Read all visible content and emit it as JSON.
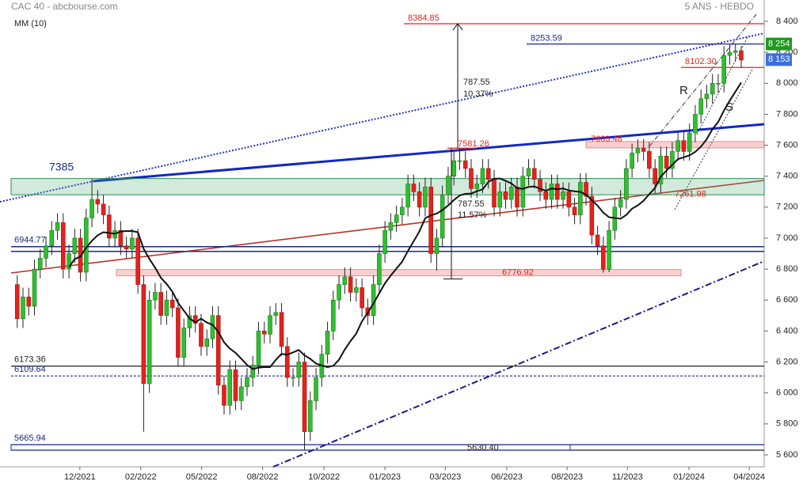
{
  "chart_data": {
    "type": "candlestick",
    "title": "CAC 40 - abcbourse.com",
    "subtitle": "5 ANS - HEBDO",
    "x": [
      0,
      1,
      2,
      3,
      4,
      5,
      6,
      7,
      8,
      9,
      10,
      11,
      12,
      13,
      14,
      15,
      16,
      17,
      18,
      19,
      20,
      21,
      22,
      23,
      24,
      25,
      26,
      27,
      28,
      29,
      30,
      31,
      32,
      33,
      34,
      35,
      36,
      37,
      38,
      39,
      40,
      41,
      42,
      43,
      44,
      45,
      46,
      47,
      48,
      49,
      50,
      51,
      52,
      53,
      54,
      55,
      56,
      57,
      58,
      59,
      60,
      61,
      62,
      63,
      64,
      65,
      66,
      67,
      68,
      69,
      70,
      71,
      72,
      73,
      74,
      75,
      76,
      77,
      78,
      79,
      80,
      81,
      82,
      83,
      84,
      85,
      86,
      87,
      88,
      89,
      90,
      91,
      92,
      93,
      94,
      95,
      96,
      97,
      98,
      99,
      100,
      101,
      102,
      103,
      104,
      105,
      106,
      107,
      108,
      109,
      110,
      111,
      112,
      113,
      114,
      115,
      116,
      117,
      118,
      119,
      120,
      121,
      122,
      123,
      124,
      125,
      126
    ],
    "open": [
      6700,
      6480,
      6620,
      6560,
      6800,
      6870,
      6950,
      7050,
      7100,
      6800,
      6900,
      7000,
      6780,
      7130,
      7250,
      7220,
      7150,
      7000,
      7050,
      6950,
      6930,
      7000,
      6700,
      6060,
      6600,
      6650,
      6500,
      6600,
      6550,
      6230,
      6420,
      6500,
      6450,
      6300,
      6350,
      6500,
      6050,
      5920,
      6150,
      5950,
      6040,
      6100,
      6180,
      6400,
      6380,
      6500,
      6520,
      6300,
      6100,
      6100,
      6200,
      5750,
      5950,
      6100,
      6250,
      6400,
      6600,
      6700,
      6750,
      6650,
      6680,
      6550,
      6500,
      6700,
      6900,
      7050,
      7100,
      7150,
      7200,
      7350,
      7300,
      7200,
      7330,
      6900,
      7000,
      7280,
      7400,
      7500,
      7500,
      7450,
      7320,
      7350,
      7450,
      7380,
      7200,
      7300,
      7250,
      7330,
      7200,
      7400,
      7450,
      7380,
      7300,
      7250,
      7350,
      7250,
      7300,
      7200,
      7150,
      7360,
      7270,
      7020,
      6950,
      6800,
      7050,
      7200,
      7250,
      7450,
      7550,
      7580,
      7560,
      7450,
      7350,
      7530,
      7450,
      7560,
      7630,
      7560,
      7680,
      7800,
      7900,
      7930,
      8000,
      8000,
      8180,
      8200,
      8210
    ],
    "high": [
      6760,
      6680,
      6680,
      6860,
      6930,
      7010,
      7110,
      7160,
      7160,
      6960,
      7060,
      7060,
      7190,
      7385,
      7310,
      7280,
      7210,
      7110,
      7110,
      7010,
      7060,
      7060,
      6760,
      6660,
      6710,
      6710,
      6660,
      6660,
      6610,
      6480,
      6560,
      6560,
      6510,
      6410,
      6560,
      6560,
      6110,
      6210,
      6210,
      6100,
      6160,
      6240,
      6460,
      6460,
      6560,
      6580,
      6580,
      6360,
      6160,
      6260,
      6260,
      6010,
      6160,
      6310,
      6460,
      6660,
      6760,
      6810,
      6810,
      6740,
      6740,
      6610,
      6760,
      6960,
      7110,
      7160,
      7210,
      7260,
      7410,
      7410,
      7360,
      7390,
      7390,
      7060,
      7340,
      7460,
      7560,
      7581,
      7560,
      7510,
      7410,
      7510,
      7510,
      7440,
      7360,
      7360,
      7390,
      7390,
      7460,
      7510,
      7510,
      7440,
      7360,
      7410,
      7410,
      7360,
      7360,
      7260,
      7420,
      7420,
      7330,
      7080,
      7010,
      7110,
      7260,
      7310,
      7510,
      7610,
      7640,
      7640,
      7620,
      7510,
      7590,
      7590,
      7620,
      7690,
      7690,
      7740,
      7860,
      7960,
      7990,
      8060,
      8060,
      8240,
      8250,
      8254,
      8240
    ],
    "low": [
      6420,
      6420,
      6500,
      6500,
      6740,
      6810,
      6890,
      6990,
      6740,
      6740,
      6840,
      6720,
      6720,
      7070,
      7160,
      7090,
      6940,
      6940,
      6890,
      6870,
      6870,
      6640,
      5750,
      6000,
      6540,
      6440,
      6440,
      6490,
      6170,
      6170,
      6360,
      6390,
      6240,
      6240,
      6290,
      5990,
      5860,
      5860,
      5890,
      5890,
      5980,
      6040,
      6120,
      6320,
      6320,
      6440,
      6240,
      6040,
      6040,
      6040,
      5630,
      5690,
      5890,
      6040,
      6190,
      6340,
      6540,
      6640,
      6590,
      6590,
      6490,
      6440,
      6440,
      6640,
      6840,
      6990,
      7040,
      7090,
      7140,
      7240,
      7140,
      7140,
      6840,
      6790,
      6940,
      7220,
      7340,
      7440,
      7390,
      7260,
      7260,
      7290,
      7320,
      7140,
      7140,
      7190,
      7190,
      7140,
      7140,
      7340,
      7320,
      7240,
      7190,
      7190,
      7190,
      7190,
      7140,
      7090,
      7090,
      7210,
      6960,
      6890,
      6777,
      6780,
      6990,
      7140,
      7190,
      7390,
      7490,
      7500,
      7390,
      7290,
      7290,
      7390,
      7390,
      7500,
      7500,
      7500,
      7620,
      7740,
      7840,
      7870,
      7940,
      7940,
      8120,
      8140,
      8102
    ],
    "close": [
      6480,
      6620,
      6560,
      6800,
      6870,
      6950,
      7050,
      7100,
      6800,
      6900,
      7000,
      6780,
      7130,
      7250,
      7220,
      7150,
      7000,
      7050,
      6950,
      6930,
      7000,
      6700,
      6060,
      6600,
      6650,
      6500,
      6600,
      6550,
      6230,
      6420,
      6500,
      6450,
      6300,
      6350,
      6500,
      6050,
      5920,
      6150,
      5950,
      6040,
      6100,
      6180,
      6400,
      6380,
      6500,
      6520,
      6300,
      6100,
      6100,
      6200,
      5750,
      5950,
      6100,
      6250,
      6400,
      6600,
      6700,
      6750,
      6650,
      6680,
      6550,
      6500,
      6700,
      6900,
      7050,
      7100,
      7150,
      7200,
      7350,
      7300,
      7200,
      7330,
      6900,
      7000,
      7280,
      7400,
      7500,
      7500,
      7450,
      7320,
      7350,
      7450,
      7380,
      7200,
      7300,
      7250,
      7330,
      7200,
      7400,
      7450,
      7380,
      7300,
      7250,
      7350,
      7250,
      7300,
      7200,
      7150,
      7360,
      7270,
      7020,
      6950,
      6800,
      7050,
      7200,
      7250,
      7450,
      7550,
      7580,
      7560,
      7450,
      7350,
      7530,
      7450,
      7560,
      7630,
      7560,
      7680,
      7800,
      7900,
      7930,
      8000,
      8000,
      8180,
      8200,
      8210,
      8150
    ],
    "up_color": "#2fbf2f",
    "down_color": "#e3221c",
    "ma": {
      "name": "MM (10)",
      "color": "#111111",
      "values": [
        null,
        null,
        null,
        null,
        null,
        null,
        null,
        null,
        null,
        6813,
        6865,
        6881,
        6938,
        6983,
        7018,
        7038,
        7033,
        7028,
        7043,
        7046,
        7046,
        7038,
        6931,
        6866,
        6809,
        6744,
        6704,
        6654,
        6582,
        6531,
        6481,
        6456,
        6480,
        6455,
        6440,
        6395,
        6327,
        6287,
        6259,
        6221,
        6181,
        6154,
        6164,
        6167,
        6167,
        6214,
        6252,
        6247,
        6262,
        6278,
        6243,
        6220,
        6190,
        6177,
        6167,
        6175,
        6215,
        6280,
        6335,
        6383,
        6463,
        6518,
        6578,
        6643,
        6708,
        6758,
        6803,
        6848,
        6918,
        6980,
        7045,
        7128,
        7148,
        7158,
        7181,
        7211,
        7246,
        7276,
        7286,
        7288,
        7303,
        7315,
        7363,
        7383,
        7385,
        7370,
        7353,
        7323,
        7318,
        7331,
        7334,
        7319,
        7306,
        7321,
        7316,
        7321,
        7308,
        7303,
        7299,
        7281,
        7245,
        7210,
        7165,
        7135,
        7130,
        7125,
        7150,
        7190,
        7212,
        7241,
        7284,
        7324,
        7397,
        7437,
        7473,
        7511,
        7522,
        7535,
        7557,
        7591,
        7639,
        7704,
        7751,
        7824,
        7888,
        7946,
        8005
      ]
    },
    "xlim": [
      -3,
      130
    ],
    "xticks": [
      {
        "value": 10.9,
        "label": "12/2021"
      },
      {
        "value": 21.5,
        "label": "02/2022"
      },
      {
        "value": 32.1,
        "label": "05/2022"
      },
      {
        "value": 42.7,
        "label": "08/2022"
      },
      {
        "value": 53.4,
        "label": "10/2022"
      },
      {
        "value": 64,
        "label": "01/2023"
      },
      {
        "value": 74.5,
        "label": "03/2023"
      },
      {
        "value": 85.2,
        "label": "06/2023"
      },
      {
        "value": 95.7,
        "label": "08/2023"
      },
      {
        "value": 106.2,
        "label": "11/2023"
      },
      {
        "value": 116.9,
        "label": "01/2024"
      },
      {
        "value": 127.4,
        "label": "04/2024"
      }
    ],
    "ylim": [
      5523,
      8538
    ],
    "yticks": [
      {
        "value": 5600,
        "label": "5 600"
      },
      {
        "value": 5800,
        "label": "5 800"
      },
      {
        "value": 6000,
        "label": "6 000"
      },
      {
        "value": 6200,
        "label": "6 200"
      },
      {
        "value": 6400,
        "label": "6 400"
      },
      {
        "value": 6600,
        "label": "6 600"
      },
      {
        "value": 6800,
        "label": "6 800"
      },
      {
        "value": 7000,
        "label": "7 000"
      },
      {
        "value": 7200,
        "label": "7 200"
      },
      {
        "value": 7400,
        "label": "7 400"
      },
      {
        "value": 7600,
        "label": "7 600"
      },
      {
        "value": 7800,
        "label": "7 800"
      },
      {
        "value": 8000,
        "label": "8 000"
      },
      {
        "value": 8200,
        "label": "8 200"
      },
      {
        "value": 8400,
        "label": "8 400"
      }
    ],
    "levels": [
      {
        "value": 8384.85,
        "color": "#e3221c"
      },
      {
        "value": 8253.59,
        "color": "#1a2a8a"
      },
      {
        "value": 8102.3,
        "label": "8102.30",
        "color": "#e3221c"
      },
      {
        "value": 7603.48,
        "color": "#e3221c"
      },
      {
        "value": 7581.26,
        "color": "#e3221c"
      },
      {
        "value": 7385,
        "low": 7280,
        "color": "#1a2a8a"
      },
      {
        "value": 7261.98,
        "color": "#e3221c"
      },
      {
        "value": 6944.77,
        "color": "#1a2a8a"
      },
      {
        "value": 6776.92,
        "color": "#e3221c"
      },
      {
        "value": 6173.36,
        "color": "#222222"
      },
      {
        "value": 6109.64,
        "color": "#1a2a8a"
      },
      {
        "value": 5665.94,
        "color": "#1a2a8a"
      },
      {
        "value": 5630.4,
        "label": "5630.40",
        "color": "#222222"
      }
    ],
    "measures": [
      {
        "points": "787.55",
        "percent": "10.37%"
      },
      {
        "points": "787.55",
        "percent": "11.57%"
      }
    ],
    "annotations": [
      "R",
      "S"
    ],
    "price_tags": [
      {
        "value": 8254,
        "label": "8 254",
        "color": "#1e9a1e"
      },
      {
        "value": 8153,
        "label": "8 153",
        "color": "#3a6fe0"
      }
    ]
  }
}
